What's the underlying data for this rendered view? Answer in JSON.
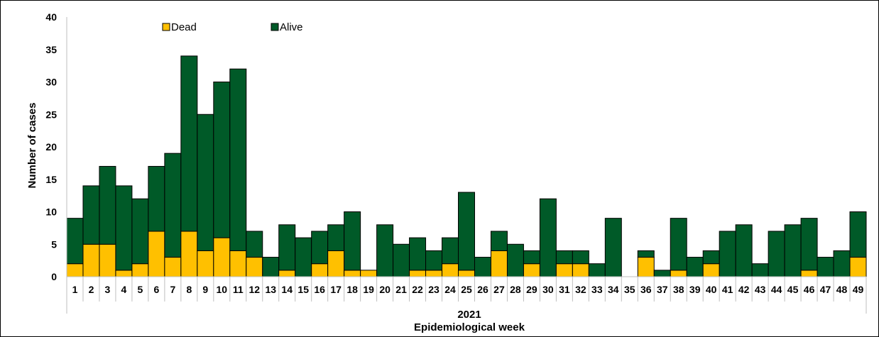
{
  "chart_data": {
    "type": "bar",
    "stacked": true,
    "categories": [
      "1",
      "2",
      "3",
      "4",
      "5",
      "6",
      "7",
      "8",
      "9",
      "10",
      "11",
      "12",
      "13",
      "14",
      "15",
      "16",
      "17",
      "18",
      "19",
      "20",
      "21",
      "22",
      "23",
      "24",
      "25",
      "26",
      "27",
      "28",
      "29",
      "30",
      "31",
      "32",
      "33",
      "34",
      "35",
      "36",
      "37",
      "38",
      "39",
      "40",
      "41",
      "42",
      "43",
      "44",
      "45",
      "46",
      "47",
      "48",
      "49"
    ],
    "series": [
      {
        "name": "Dead",
        "color": "#ffc000",
        "values": [
          2,
          5,
          5,
          1,
          2,
          7,
          3,
          7,
          4,
          6,
          4,
          3,
          0,
          1,
          0,
          2,
          4,
          1,
          1,
          0,
          0,
          1,
          1,
          2,
          1,
          0,
          4,
          0,
          2,
          0,
          2,
          2,
          0,
          0,
          0,
          3,
          0,
          1,
          0,
          2,
          0,
          0,
          0,
          0,
          0,
          1,
          0,
          0,
          3
        ]
      },
      {
        "name": "Alive",
        "color": "#005a28",
        "values": [
          7,
          9,
          12,
          13,
          10,
          10,
          16,
          27,
          21,
          24,
          28,
          4,
          3,
          7,
          6,
          5,
          4,
          9,
          0,
          8,
          5,
          5,
          3,
          4,
          12,
          3,
          3,
          5,
          2,
          12,
          2,
          2,
          2,
          9,
          0,
          1,
          1,
          8,
          3,
          2,
          7,
          8,
          2,
          7,
          8,
          8,
          3,
          4,
          7
        ]
      }
    ],
    "ylabel": "Number of cases",
    "xlabel": "Epidemiological week",
    "x_group_label": "2021",
    "ylim": [
      0,
      40
    ],
    "yticks": [
      0,
      5,
      10,
      15,
      20,
      25,
      30,
      35,
      40
    ],
    "grid": false,
    "legend_position": "top-left"
  }
}
